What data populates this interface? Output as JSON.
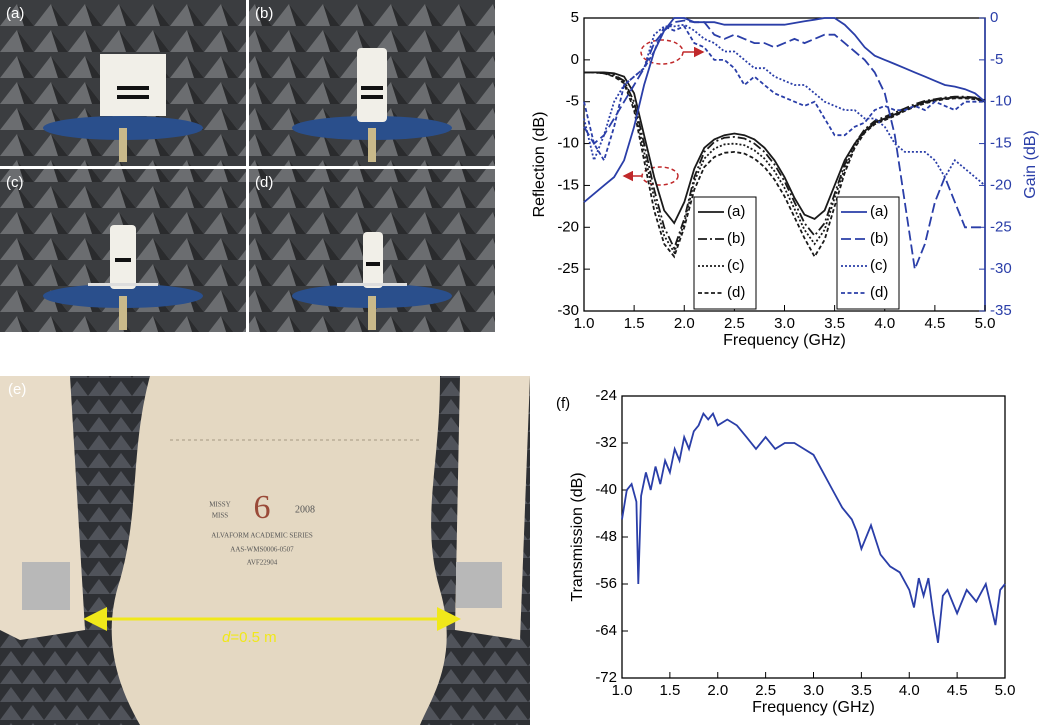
{
  "photo_labels": [
    "(a)",
    "(b)",
    "(c)",
    "(d)",
    "(e)"
  ],
  "distance_var": "d",
  "distance_text": "=0.5 m",
  "mannequin_tag": [
    "MISSY",
    "MISS",
    "6",
    "2008",
    "ALVAFORM ACADEMIC SERIES",
    "AAS-WMS0006-0507",
    "AVF22904"
  ],
  "chart_data": [
    {
      "type": "line",
      "xlabel": "Frequency (GHz)",
      "ylabel": "Reflection (dB)",
      "y2label": "Gain (dB)",
      "x": [
        1.0,
        1.1,
        1.2,
        1.3,
        1.4,
        1.5,
        1.6,
        1.7,
        1.8,
        1.9,
        2.0,
        2.1,
        2.2,
        2.3,
        2.4,
        2.5,
        2.6,
        2.7,
        2.8,
        2.9,
        3.0,
        3.1,
        3.2,
        3.3,
        3.4,
        3.5,
        3.6,
        3.7,
        3.8,
        3.9,
        4.0,
        4.1,
        4.2,
        4.3,
        4.4,
        4.5,
        4.6,
        4.7,
        4.8,
        4.9,
        5.0
      ],
      "xlim": [
        1,
        5
      ],
      "xticks": [
        {
          "value": 1,
          "label": "1.0"
        },
        {
          "value": 1.5,
          "label": "1.5"
        },
        {
          "value": 2,
          "label": "2.0"
        },
        {
          "value": 2.5,
          "label": "2.5"
        },
        {
          "value": 3,
          "label": "3.0"
        },
        {
          "value": 3.5,
          "label": "3.5"
        },
        {
          "value": 4,
          "label": "4.0"
        },
        {
          "value": 4.5,
          "label": "4.5"
        },
        {
          "value": 5,
          "label": "5.0"
        }
      ],
      "ylim": [
        -30,
        5
      ],
      "yticks": [
        -30,
        -25,
        -20,
        -15,
        -10,
        -5,
        0,
        5
      ],
      "y2lim": [
        -35,
        0
      ],
      "y2ticks": [
        -35,
        -30,
        -25,
        -20,
        -15,
        -10,
        -5,
        0
      ],
      "y2color": "#2a3ea8",
      "series": [
        {
          "name": "(a)",
          "color": "#1a1a1a",
          "dash": "solid",
          "axis": "y",
          "values": [
            -1.5,
            -1.5,
            -1.5,
            -1.6,
            -2,
            -4,
            -9,
            -14,
            -18,
            -19.5,
            -17,
            -13,
            -10.5,
            -9.5,
            -9,
            -8.8,
            -9,
            -9.5,
            -10.5,
            -12,
            -14,
            -16.5,
            -18.5,
            -19,
            -18,
            -15,
            -12,
            -10,
            -8.5,
            -7.5,
            -7,
            -6.5,
            -6,
            -5.5,
            -5,
            -4.8,
            -4.6,
            -4.5,
            -4.5,
            -4.5,
            -5
          ]
        },
        {
          "name": "(b)",
          "color": "#1a1a1a",
          "dash": "dash-dot",
          "axis": "y",
          "values": [
            -1.5,
            -1.5,
            -1.6,
            -1.8,
            -2.5,
            -5,
            -10,
            -15.5,
            -20,
            -22.5,
            -19,
            -14,
            -11,
            -9.8,
            -9.3,
            -9.2,
            -9.4,
            -10,
            -11,
            -12.5,
            -14.5,
            -17,
            -19.5,
            -21,
            -19.5,
            -16,
            -12.5,
            -10,
            -8.3,
            -7.3,
            -6.8,
            -6.3,
            -5.8,
            -5.3,
            -4.9,
            -4.7,
            -4.5,
            -4.4,
            -4.4,
            -4.5,
            -4.8
          ]
        },
        {
          "name": "(c)",
          "color": "#1a1a1a",
          "dash": "dotted",
          "axis": "y",
          "values": [
            -1.5,
            -1.5,
            -1.6,
            -1.9,
            -2.6,
            -5.5,
            -11,
            -16.5,
            -21,
            -23,
            -19.5,
            -14.5,
            -11.8,
            -10.6,
            -10.1,
            -10,
            -10.2,
            -10.8,
            -11.8,
            -13.3,
            -15.3,
            -17.8,
            -20.3,
            -22,
            -20.3,
            -16.5,
            -13,
            -10.3,
            -8.6,
            -7.6,
            -7.1,
            -6.6,
            -6,
            -5.5,
            -5.1,
            -4.8,
            -4.6,
            -4.5,
            -4.5,
            -4.6,
            -4.9
          ]
        },
        {
          "name": "(d)",
          "color": "#1a1a1a",
          "dash": "short-dash",
          "axis": "y",
          "values": [
            -1.5,
            -1.5,
            -1.6,
            -2,
            -2.8,
            -6,
            -12,
            -18,
            -22,
            -23.5,
            -20,
            -15.5,
            -12.8,
            -11.6,
            -11.1,
            -11,
            -11.2,
            -11.8,
            -12.8,
            -14.3,
            -16.3,
            -18.8,
            -21.3,
            -23.5,
            -21.5,
            -17.5,
            -13.5,
            -10.5,
            -8.7,
            -7.7,
            -7.2,
            -6.7,
            -6.1,
            -5.6,
            -5.2,
            -4.9,
            -4.7,
            -4.6,
            -4.6,
            -4.7,
            -5
          ]
        },
        {
          "name": "(a)",
          "color": "#2a3ea8",
          "dash": "solid",
          "axis": "y2",
          "values": [
            -22,
            -21,
            -20,
            -19,
            -17,
            -13,
            -8,
            -4,
            -1.5,
            0,
            0,
            -0.5,
            -0.5,
            -0.5,
            -0.8,
            -0.8,
            -0.8,
            -0.8,
            -0.8,
            -0.8,
            -0.8,
            -0.6,
            -0.4,
            -0.2,
            0,
            0,
            -0.8,
            -2,
            -3.5,
            -4.5,
            -5,
            -5.5,
            -6,
            -6.5,
            -7,
            -7.5,
            -8,
            -8.2,
            -8.5,
            -9,
            -10
          ]
        },
        {
          "name": "(b)",
          "color": "#2a3ea8",
          "dash": "dashed",
          "axis": "y2",
          "values": [
            -13,
            -15,
            -14,
            -12,
            -10,
            -8,
            -6,
            -3,
            -1.5,
            -0.5,
            -0.3,
            -0.5,
            -0.5,
            -2,
            -2.5,
            -2,
            -2.5,
            -3,
            -3,
            -3.5,
            -3,
            -2.5,
            -3,
            -2.5,
            -2,
            -2,
            -3,
            -4,
            -5,
            -6.5,
            -9,
            -14,
            -22,
            -30,
            -27,
            -22,
            -19,
            -22,
            -25,
            -25,
            -25
          ]
        },
        {
          "name": "(c)",
          "color": "#2a3ea8",
          "dash": "dotted",
          "axis": "y2",
          "values": [
            -12,
            -17,
            -14,
            -10,
            -8,
            -7,
            -6,
            -2,
            -1,
            -1,
            -0.8,
            -1.5,
            -2.5,
            -3,
            -4,
            -4,
            -5,
            -6,
            -6,
            -7,
            -7.5,
            -8,
            -8,
            -9,
            -10,
            -10.5,
            -11,
            -11,
            -12,
            -12,
            -13,
            -15,
            -16,
            -16,
            -16,
            -17,
            -19,
            -17,
            -18,
            -19,
            -20
          ]
        },
        {
          "name": "(d)",
          "color": "#2a3ea8",
          "dash": "short-dash",
          "axis": "y2",
          "values": [
            -10,
            -15,
            -17,
            -13,
            -8,
            -7,
            -6,
            -4,
            -1,
            -1.5,
            -1,
            -3,
            -3.5,
            -5,
            -5,
            -6,
            -8,
            -7,
            -8,
            -9,
            -9.5,
            -10,
            -10.5,
            -10,
            -12,
            -14,
            -14,
            -13,
            -12.5,
            -11,
            -10.5,
            -11,
            -11,
            -10.5,
            -11,
            -10,
            -10.5,
            -11,
            -10,
            -10,
            -10
          ]
        }
      ]
    },
    {
      "type": "line",
      "panel": "(f)",
      "xlabel": "Frequency (GHz)",
      "ylabel": "Transmission (dB)",
      "x": [
        1.0,
        1.05,
        1.1,
        1.15,
        1.17,
        1.2,
        1.25,
        1.3,
        1.35,
        1.4,
        1.45,
        1.5,
        1.55,
        1.6,
        1.65,
        1.7,
        1.75,
        1.8,
        1.85,
        1.9,
        1.95,
        2.0,
        2.1,
        2.2,
        2.3,
        2.4,
        2.5,
        2.6,
        2.7,
        2.8,
        2.9,
        3.0,
        3.1,
        3.2,
        3.3,
        3.4,
        3.45,
        3.5,
        3.6,
        3.7,
        3.8,
        3.9,
        4.0,
        4.05,
        4.1,
        4.15,
        4.2,
        4.25,
        4.3,
        4.35,
        4.4,
        4.5,
        4.6,
        4.7,
        4.8,
        4.9,
        4.95,
        5.0
      ],
      "xlim": [
        1,
        5
      ],
      "xticks": [
        {
          "value": 1,
          "label": "1.0"
        },
        {
          "value": 1.5,
          "label": "1.5"
        },
        {
          "value": 2,
          "label": "2.0"
        },
        {
          "value": 2.5,
          "label": "2.5"
        },
        {
          "value": 3,
          "label": "3.0"
        },
        {
          "value": 3.5,
          "label": "3.5"
        },
        {
          "value": 4,
          "label": "4.0"
        },
        {
          "value": 4.5,
          "label": "4.5"
        },
        {
          "value": 5,
          "label": "5.0"
        }
      ],
      "ylim": [
        -72,
        -24
      ],
      "yticks": [
        -72,
        -64,
        -56,
        -48,
        -40,
        -32,
        -24
      ],
      "series": [
        {
          "name": null,
          "color": "#2a3ea8",
          "dash": "solid",
          "axis": "y",
          "values": [
            -45,
            -40,
            -39,
            -42,
            -56,
            -41,
            -37,
            -40,
            -36,
            -39,
            -35,
            -37,
            -33,
            -35,
            -31,
            -33,
            -30,
            -29,
            -27,
            -28,
            -27,
            -29,
            -28,
            -29,
            -31,
            -33,
            -31,
            -33,
            -32,
            -32,
            -33,
            -34,
            -37,
            -40,
            -43,
            -45,
            -47,
            -50,
            -46,
            -51,
            -53,
            -54,
            -57,
            -60,
            -55,
            -58,
            -55,
            -61,
            -66,
            -58,
            -57,
            -61,
            -57,
            -59,
            -56,
            -63,
            -57,
            -56
          ]
        }
      ]
    }
  ]
}
